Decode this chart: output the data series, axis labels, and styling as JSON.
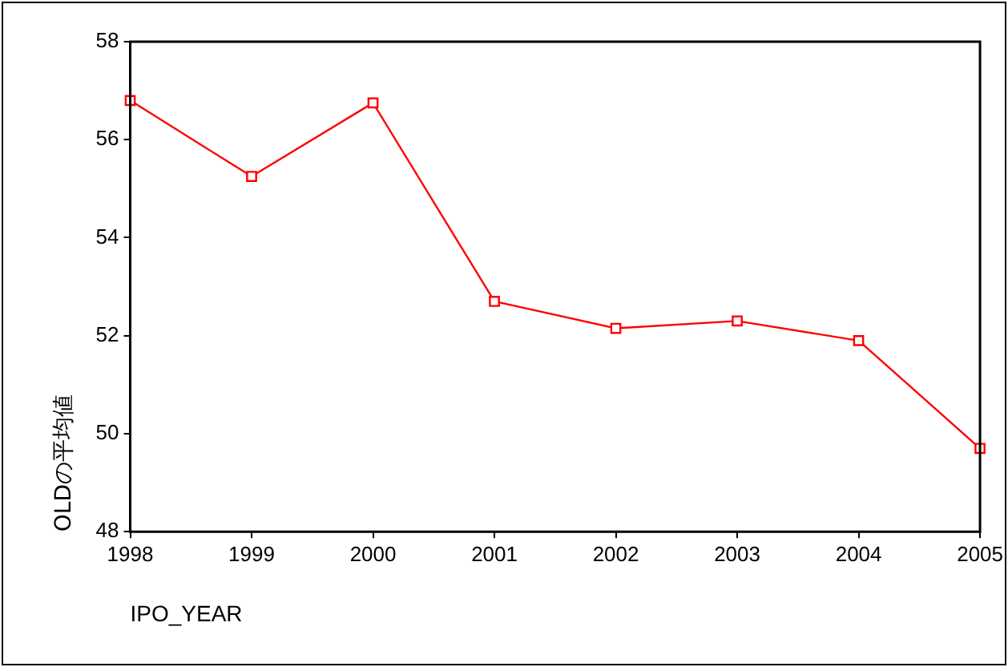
{
  "chart_data": {
    "type": "line",
    "xlabel": "IPO_YEAR",
    "ylabel": "OLDの平均値",
    "categories": [
      "1998",
      "1999",
      "2000",
      "2001",
      "2002",
      "2003",
      "2004",
      "2005"
    ],
    "series": [
      {
        "color": "#ff0000",
        "values": [
          56.8,
          55.25,
          56.75,
          52.7,
          52.15,
          52.3,
          51.9,
          49.7
        ]
      }
    ],
    "ylim": [
      48,
      58
    ],
    "yticks": [
      48,
      50,
      52,
      54,
      56,
      58
    ],
    "grid": false,
    "legend": false,
    "marker": "square",
    "line_style": "solid"
  }
}
